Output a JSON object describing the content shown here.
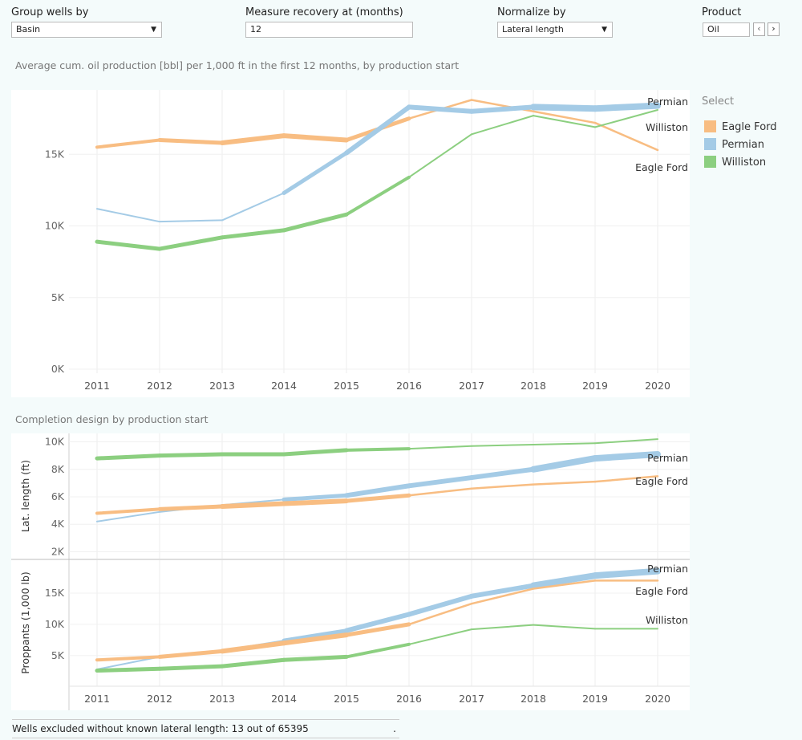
{
  "controls": {
    "group_label": "Group wells by",
    "group_value": "Basin",
    "measure_label": "Measure recovery at (months)",
    "measure_value": "12",
    "normalize_label": "Normalize by",
    "normalize_value": "Lateral length",
    "product_label": "Product",
    "product_value": "Oil"
  },
  "legend": {
    "title": "Select",
    "items": [
      {
        "name": "Eagle Ford",
        "color": "#f8bd82"
      },
      {
        "name": "Permian",
        "color": "#a4cbe6"
      },
      {
        "name": "Williston",
        "color": "#8ccf80"
      }
    ]
  },
  "footer": {
    "text": "Wells excluded without known lateral length: 13 out of 65395",
    "dot": "."
  },
  "chart_data": [
    {
      "type": "line",
      "title": "Average cum. oil production [bbl] per 1,000 ft in the first 12 months, by production start",
      "x": [
        "2011",
        "2012",
        "2013",
        "2014",
        "2015",
        "2016",
        "2017",
        "2018",
        "2019",
        "2020"
      ],
      "yticks": [
        "0K",
        "5K",
        "10K",
        "15K"
      ],
      "ylim": [
        0,
        19500
      ],
      "grid": true,
      "series": [
        {
          "name": "Eagle Ford",
          "color": "#f8bd82",
          "values": [
            15500,
            16000,
            15800,
            16300,
            16000,
            17500,
            18800,
            18000,
            17200,
            15300
          ]
        },
        {
          "name": "Permian",
          "color": "#a4cbe6",
          "values": [
            11200,
            10300,
            10400,
            12300,
            15100,
            18300,
            18000,
            18300,
            18200,
            18400
          ]
        },
        {
          "name": "Williston",
          "color": "#8ccf80",
          "values": [
            8900,
            8400,
            9200,
            9700,
            10800,
            13400,
            16400,
            17700,
            16900,
            18100
          ]
        }
      ],
      "end_labels": [
        "Permian",
        "Williston",
        "Eagle Ford"
      ]
    },
    {
      "type": "line",
      "title": "Completion design by production start",
      "ylabel": "Lat. length (ft)",
      "yticks": [
        "2K",
        "4K",
        "6K",
        "8K",
        "10K"
      ],
      "ylim": [
        1500,
        10500
      ],
      "series": [
        {
          "name": "Williston",
          "color": "#8ccf80",
          "values": [
            8800,
            9000,
            9100,
            9100,
            9400,
            9500,
            9700,
            9800,
            9900,
            10200
          ]
        },
        {
          "name": "Permian",
          "color": "#a4cbe6",
          "values": [
            4200,
            4900,
            5400,
            5800,
            6100,
            6800,
            7400,
            8000,
            8800,
            9100
          ]
        },
        {
          "name": "Eagle Ford",
          "color": "#f8bd82",
          "values": [
            4800,
            5100,
            5300,
            5500,
            5700,
            6100,
            6600,
            6900,
            7100,
            7500
          ]
        }
      ],
      "end_labels": [
        "Permian",
        "Eagle Ford"
      ]
    },
    {
      "type": "line",
      "ylabel": "Proppants (1,000 lb)",
      "yticks": [
        "5K",
        "10K",
        "15K"
      ],
      "ylim": [
        1000,
        20000
      ],
      "x": [
        "2011",
        "2012",
        "2013",
        "2014",
        "2015",
        "2016",
        "2017",
        "2018",
        "2019",
        "2020"
      ],
      "series": [
        {
          "name": "Permian",
          "color": "#a4cbe6",
          "values": [
            2800,
            4800,
            5800,
            7400,
            9000,
            11600,
            14500,
            16200,
            17800,
            18500
          ]
        },
        {
          "name": "Eagle Ford",
          "color": "#f8bd82",
          "values": [
            4300,
            4800,
            5700,
            7000,
            8300,
            10000,
            13300,
            15700,
            17000,
            17000
          ]
        },
        {
          "name": "Williston",
          "color": "#8ccf80",
          "values": [
            2600,
            2900,
            3300,
            4300,
            4800,
            6800,
            9200,
            9900,
            9300,
            9300
          ]
        }
      ],
      "end_labels": [
        "Permian",
        "Eagle Ford",
        "Williston"
      ]
    }
  ]
}
